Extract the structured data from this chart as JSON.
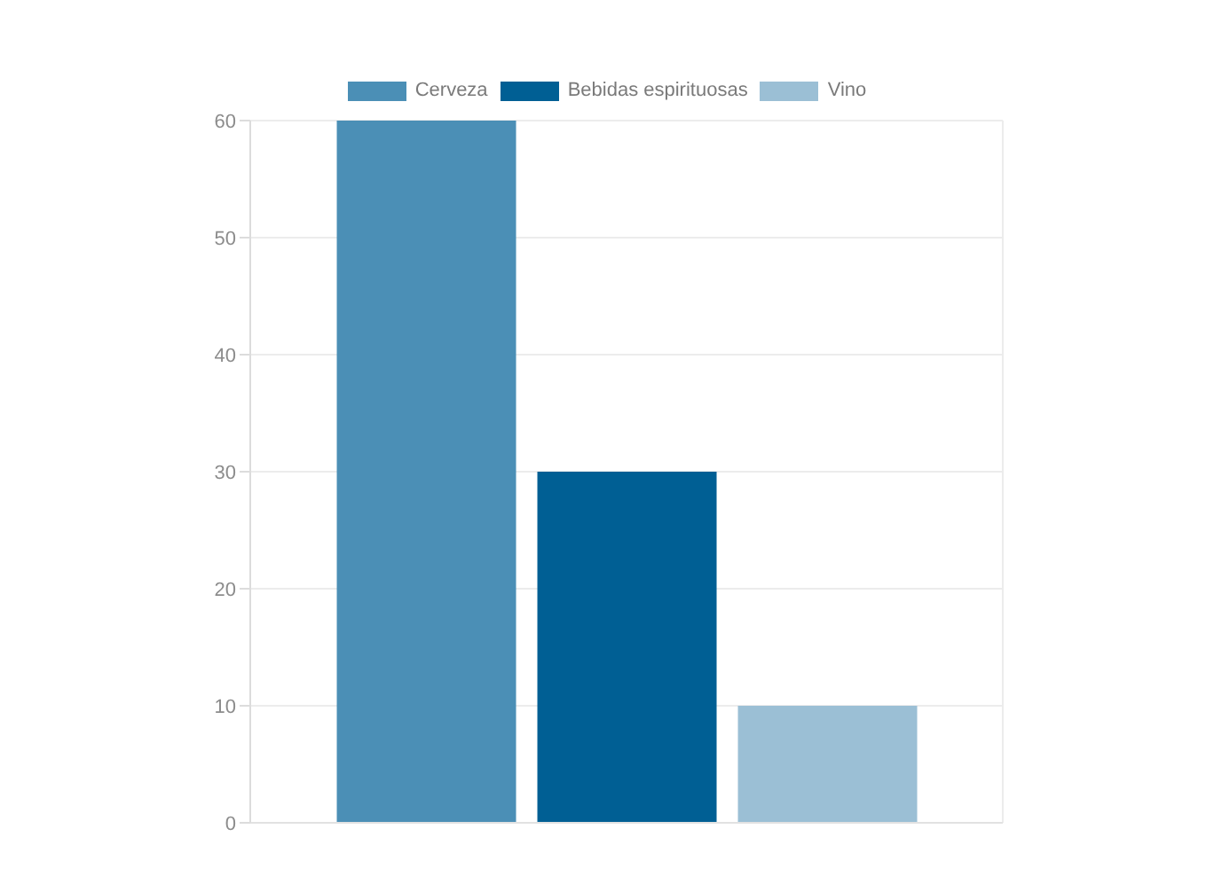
{
  "chart_data": {
    "type": "bar",
    "categories": [
      null
    ],
    "series": [
      {
        "name": "Cerveza",
        "color": "#4b8fb6",
        "values": [
          60
        ]
      },
      {
        "name": "Bebidas espirituosas",
        "color": "#005f94",
        "values": [
          30
        ]
      },
      {
        "name": "Vino",
        "color": "#9bbfd5",
        "values": [
          10
        ]
      }
    ],
    "ylim": [
      0,
      60
    ],
    "yticks": [
      0,
      10,
      20,
      30,
      40,
      50,
      60
    ],
    "grid": true,
    "legend": "top",
    "tick_labels": "y"
  }
}
